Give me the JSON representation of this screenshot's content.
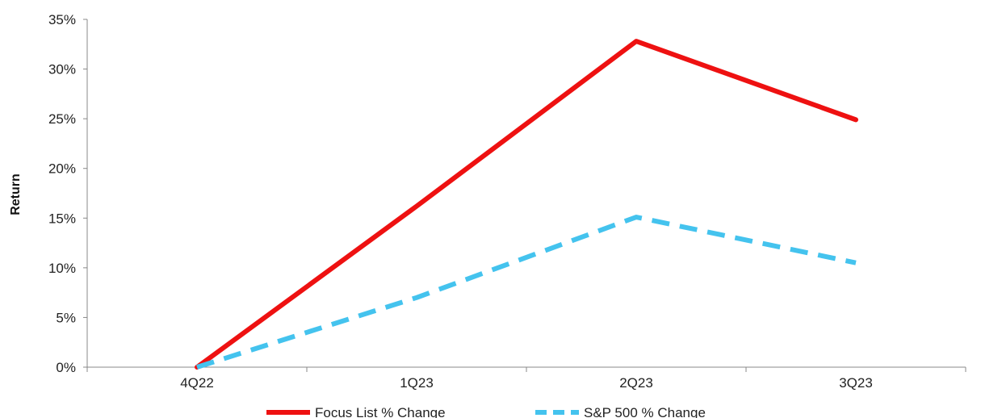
{
  "chart_data": {
    "type": "line",
    "title": "",
    "xlabel": "",
    "ylabel": "Return",
    "categories": [
      "4Q22",
      "1Q23",
      "2Q23",
      "3Q23"
    ],
    "ylim": [
      0,
      35
    ],
    "yticks": [
      0,
      5,
      10,
      15,
      20,
      25,
      30,
      35
    ],
    "ytick_labels": [
      "0%",
      "5%",
      "10%",
      "15%",
      "20%",
      "25%",
      "30%",
      "35%"
    ],
    "grid": false,
    "legend_position": "bottom",
    "series": [
      {
        "name": "Focus List % Change",
        "values": [
          0,
          16.2,
          32.8,
          24.9
        ],
        "color": "#ee1111",
        "style": "solid"
      },
      {
        "name": "S&P 500 % Change",
        "values": [
          0,
          7.0,
          15.1,
          10.5
        ],
        "color": "#44c3ee",
        "style": "dashed"
      }
    ]
  }
}
